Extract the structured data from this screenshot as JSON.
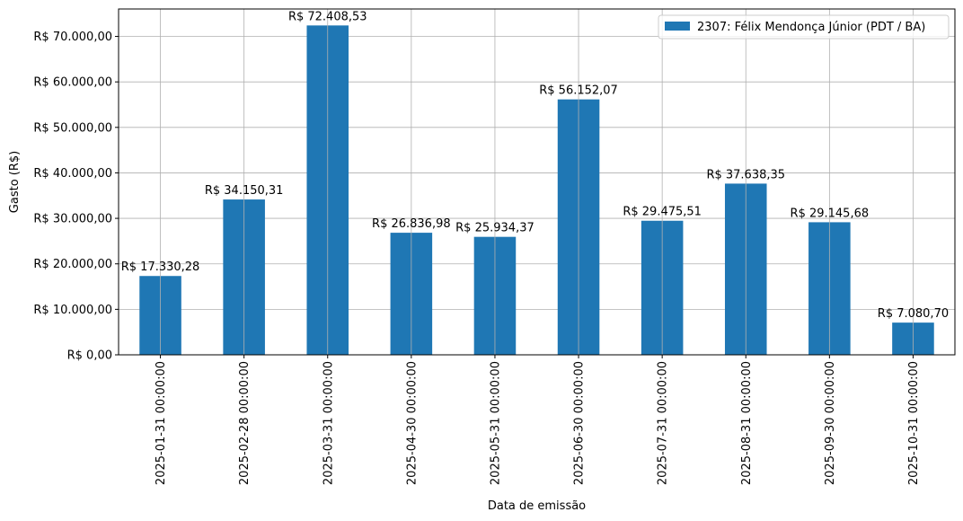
{
  "chart_data": {
    "type": "bar",
    "categories": [
      "2025-01-31 00:00:00",
      "2025-02-28 00:00:00",
      "2025-03-31 00:00:00",
      "2025-04-30 00:00:00",
      "2025-05-31 00:00:00",
      "2025-06-30 00:00:00",
      "2025-07-31 00:00:00",
      "2025-08-31 00:00:00",
      "2025-09-30 00:00:00",
      "2025-10-31 00:00:00"
    ],
    "series": [
      {
        "name": "2307: Félix Mendonça Júnior (PDT / BA)",
        "color": "#1f77b4",
        "values": [
          17330.28,
          34150.31,
          72408.53,
          26836.98,
          25934.37,
          56152.07,
          29475.51,
          37638.35,
          29145.68,
          7080.7
        ],
        "labels": [
          "R$ 17.330,28",
          "R$ 34.150,31",
          "R$ 72.408,53",
          "R$ 26.836,98",
          "R$ 25.934,37",
          "R$ 56.152,07",
          "R$ 29.475,51",
          "R$ 37.638,35",
          "R$ 29.145,68",
          "R$ 7.080,70"
        ]
      }
    ],
    "yticks": [
      0,
      10000,
      20000,
      30000,
      40000,
      50000,
      60000,
      70000
    ],
    "ytick_labels": [
      "R$ 0,00",
      "R$ 10.000,00",
      "R$ 20.000,00",
      "R$ 30.000,00",
      "R$ 40.000,00",
      "R$ 50.000,00",
      "R$ 60.000,00",
      "R$ 70.000,00"
    ],
    "ylim": [
      0,
      76028.96
    ],
    "xlabel": "Data de emissão",
    "ylabel": "Gasto (R$)",
    "title": "",
    "grid": true,
    "legend_position": "top-right"
  }
}
